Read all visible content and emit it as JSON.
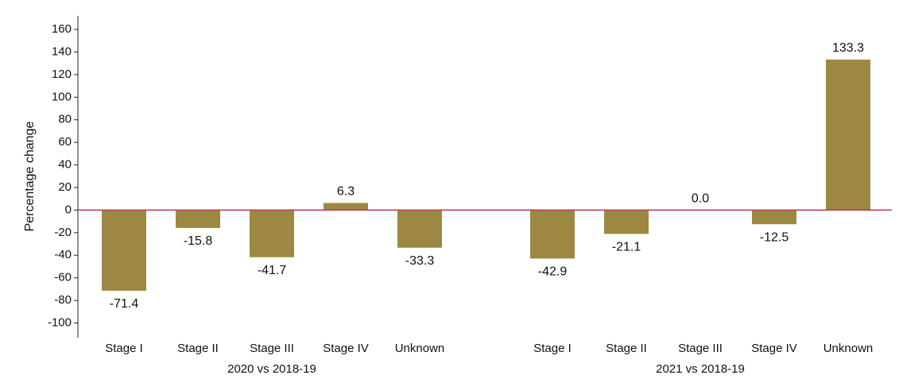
{
  "chart_data": {
    "type": "bar",
    "ylabel": "Percentage change",
    "categories": [
      "Stage I",
      "Stage II",
      "Stage III",
      "Stage IV",
      "Unknown"
    ],
    "groups": [
      {
        "name": "2020 vs 2018-19",
        "values": [
          -71.4,
          -15.8,
          -41.7,
          6.3,
          -33.3
        ],
        "value_labels": [
          "-71.4",
          "-15.8",
          "-41.7",
          "6.3",
          "-33.3"
        ]
      },
      {
        "name": "2021 vs 2018-19",
        "values": [
          -42.9,
          -21.1,
          0.0,
          -12.5,
          133.3
        ],
        "value_labels": [
          "-42.9",
          "-21.1",
          "0.0",
          "-12.5",
          "133.3"
        ]
      }
    ],
    "color": "#9c8843",
    "zero_line_color": "#c0304f",
    "ylim": [
      -113,
      172
    ],
    "yticks": [
      -100,
      -80,
      -60,
      -40,
      -20,
      0,
      20,
      40,
      60,
      80,
      100,
      120,
      140,
      160
    ],
    "grid": false
  }
}
